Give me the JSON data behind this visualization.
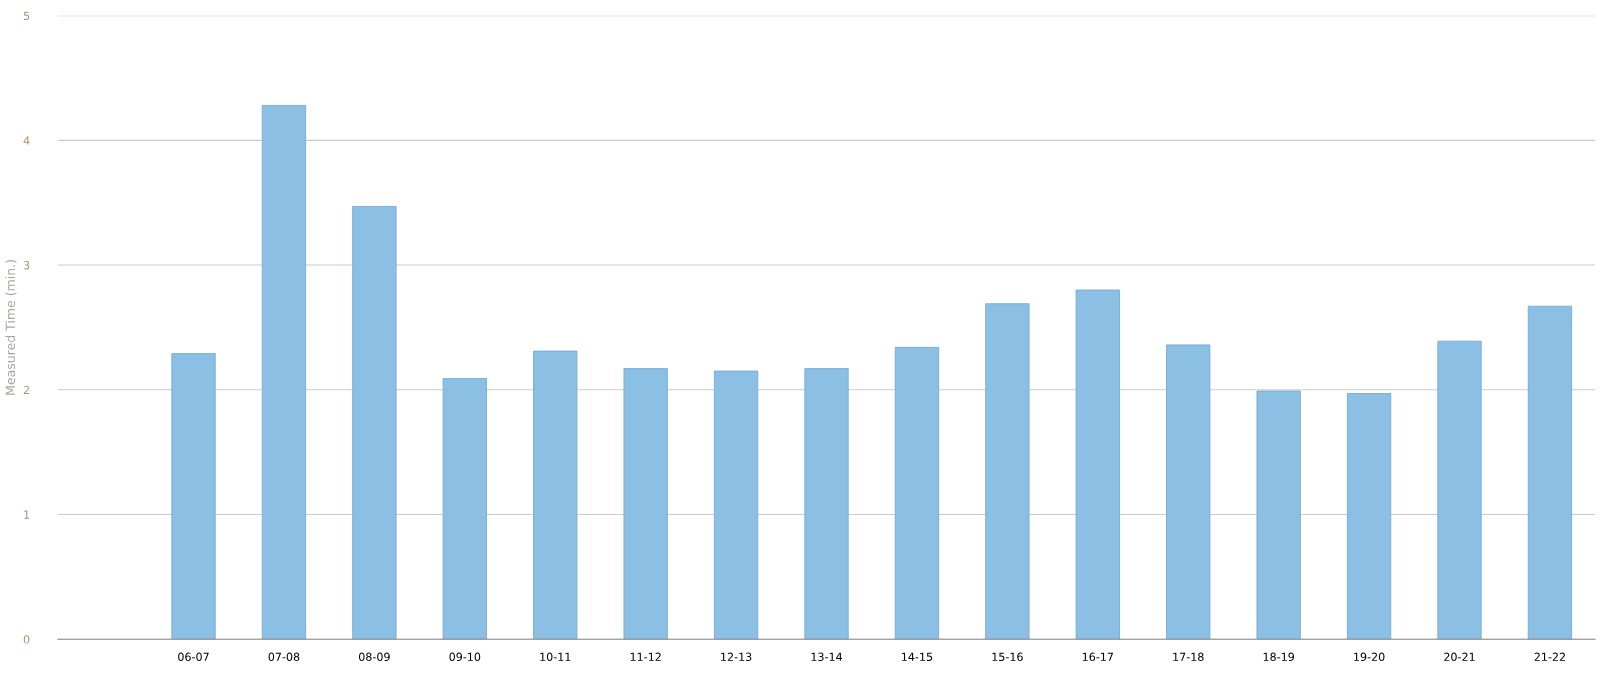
{
  "chart_data": {
    "type": "bar",
    "ylabel": "Measured Time (min.)",
    "categories": [
      null,
      "06-07",
      "07-08",
      "08-09",
      "09-10",
      "10-11",
      "11-12",
      "12-13",
      "13-14",
      "14-15",
      "15-16",
      "16-17",
      "17-18",
      "18-19",
      "19-20",
      "20-21",
      "21-22"
    ],
    "series": [
      {
        "color": "#8bbfe4",
        "values": [
          null,
          2.29,
          4.28,
          3.47,
          2.09,
          2.31,
          2.17,
          2.15,
          2.17,
          2.34,
          2.69,
          2.8,
          2.36,
          1.99,
          1.97,
          2.39,
          2.67
        ]
      }
    ],
    "ylim": [
      0,
      5
    ],
    "yticks": [
      0,
      1,
      2,
      3,
      4,
      5
    ],
    "grid": "y"
  }
}
